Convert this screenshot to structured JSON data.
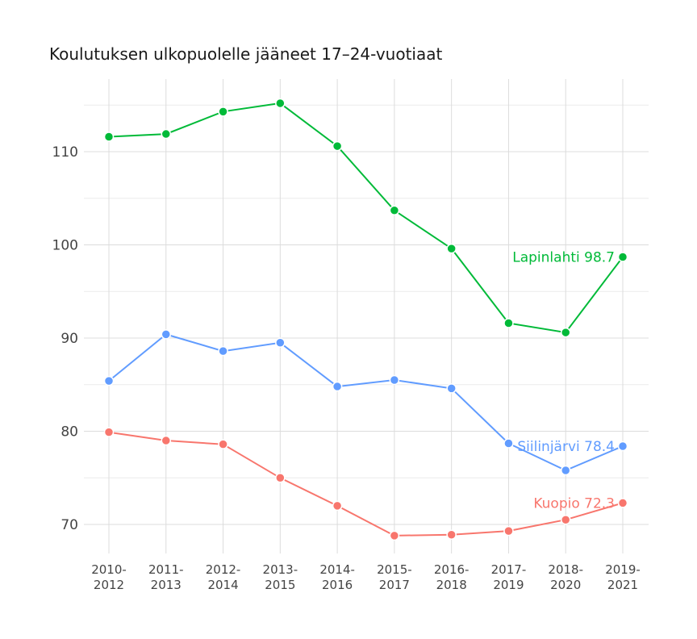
{
  "chart_data": {
    "type": "line",
    "title": "Koulutuksen ulkopuolelle jääneet 17–24-vuotiaat",
    "xlabel": "",
    "ylabel": "",
    "categories": [
      [
        "2010-",
        "2012"
      ],
      [
        "2011-",
        "2013"
      ],
      [
        "2012-",
        "2014"
      ],
      [
        "2013-",
        "2015"
      ],
      [
        "2014-",
        "2016"
      ],
      [
        "2015-",
        "2017"
      ],
      [
        "2016-",
        "2018"
      ],
      [
        "2017-",
        "2019"
      ],
      [
        "2018-",
        "2020"
      ],
      [
        "2019-",
        "2021"
      ]
    ],
    "ylim": [
      66.5,
      118
    ],
    "yticks": [
      70,
      80,
      90,
      100,
      110
    ],
    "grid": true,
    "legend": "none",
    "series": [
      {
        "name": "Lapinlahti",
        "color": "#00ba38",
        "label": "Lapinlahti 98.7",
        "values": [
          111.6,
          111.9,
          114.3,
          115.2,
          110.6,
          103.7,
          99.6,
          91.6,
          90.6,
          98.7
        ]
      },
      {
        "name": "Siilinjärvi",
        "color": "#619cff",
        "label": "Siilinjärvi 78.4",
        "values": [
          85.4,
          90.4,
          88.6,
          89.5,
          84.8,
          85.5,
          84.6,
          78.7,
          75.8,
          78.4
        ]
      },
      {
        "name": "Kuopio",
        "color": "#f8766d",
        "label": "Kuopio 72.3",
        "values": [
          79.9,
          79.0,
          78.6,
          75.0,
          72.0,
          68.8,
          68.9,
          69.3,
          70.5,
          72.3
        ]
      }
    ]
  }
}
